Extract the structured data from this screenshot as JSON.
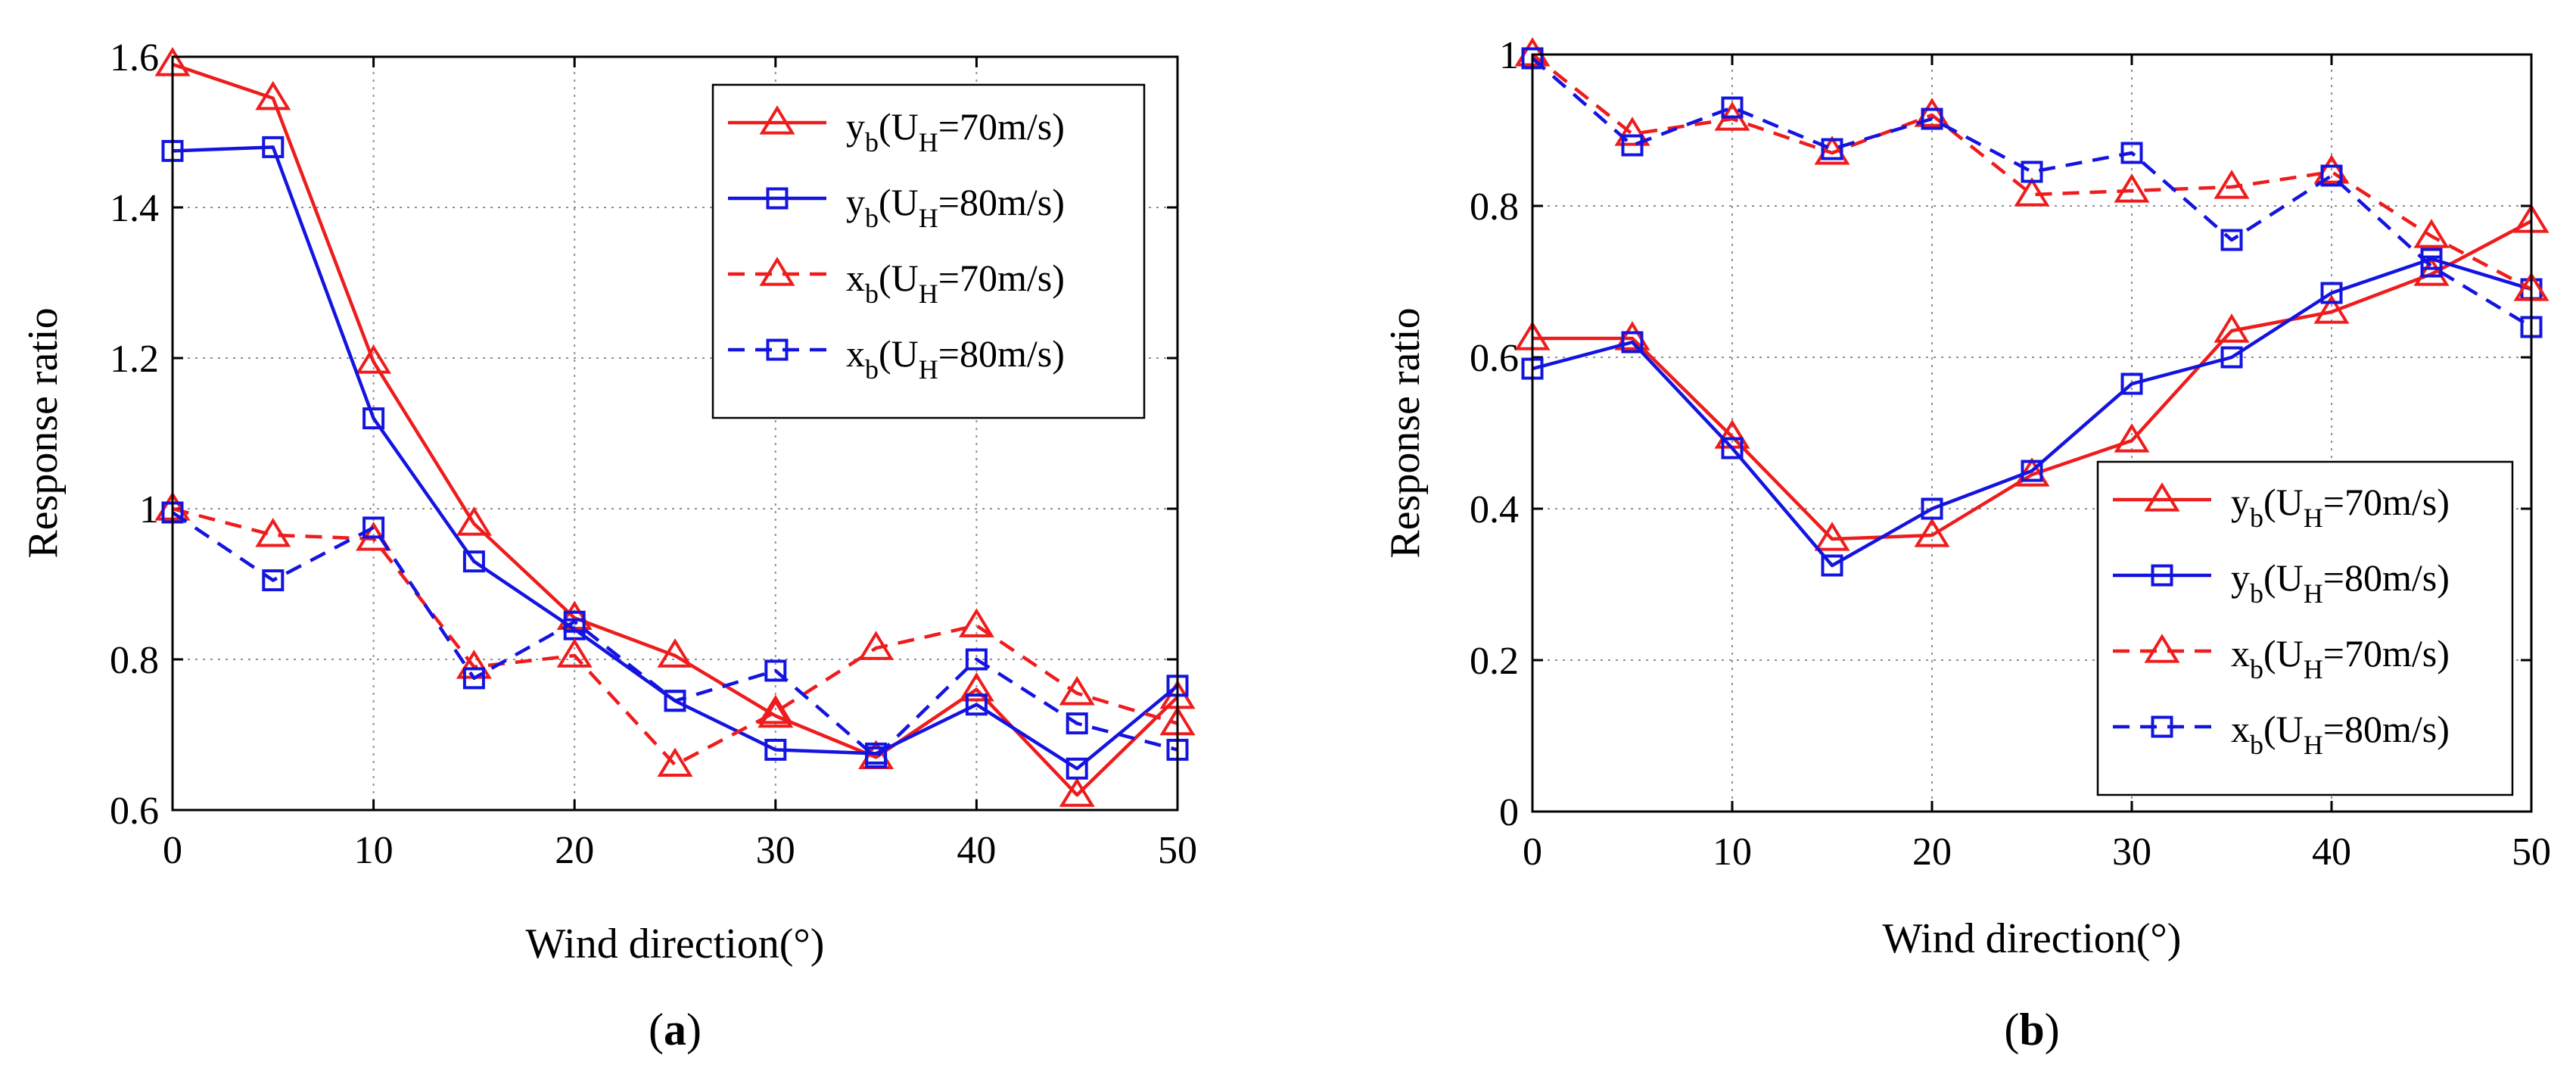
{
  "figure": {
    "panel_labels": [
      {
        "open": "(",
        "letter": "a",
        "close": ")"
      },
      {
        "open": "(",
        "letter": "b",
        "close": ")"
      }
    ]
  },
  "colors": {
    "red": "#ee1c1c",
    "blue": "#1414e0",
    "grid": "#909090",
    "axis": "#000000"
  },
  "chart_data": [
    {
      "type": "line",
      "panel": "a",
      "xlabel": "Wind direction(°)",
      "ylabel": "Response ratio",
      "xlim": [
        0,
        50
      ],
      "ylim": [
        0.6,
        1.6
      ],
      "xticks": [
        0,
        10,
        20,
        30,
        40,
        50
      ],
      "xtick_labels": [
        "0",
        "10",
        "20",
        "30",
        "40",
        "50"
      ],
      "yticks": [
        0.6,
        0.8,
        1.0,
        1.2,
        1.4,
        1.6
      ],
      "ytick_labels": [
        "0.6",
        "0.8",
        "1",
        "1.2",
        "1.4",
        "1.6"
      ],
      "grid": true,
      "legend_position": "top-right",
      "x": [
        0,
        5,
        10,
        15,
        20,
        25,
        30,
        35,
        40,
        45,
        50
      ],
      "series": [
        {
          "name": "yb70",
          "label_main": "y",
          "label_sub": "b",
          "label_mid": "(U",
          "label_sub2": "H",
          "label_end": "=70m/s)",
          "color": "red",
          "dashed": false,
          "marker": "triangle",
          "values": [
            1.59,
            1.545,
            1.195,
            0.98,
            0.855,
            0.805,
            0.725,
            0.67,
            0.76,
            0.62,
            0.75
          ]
        },
        {
          "name": "yb80",
          "label_main": "y",
          "label_sub": "b",
          "label_mid": "(U",
          "label_sub2": "H",
          "label_end": "=80m/s)",
          "color": "blue",
          "dashed": false,
          "marker": "square",
          "values": [
            1.475,
            1.48,
            1.12,
            0.93,
            0.84,
            0.745,
            0.68,
            0.675,
            0.74,
            0.655,
            0.765
          ]
        },
        {
          "name": "xb70",
          "label_main": "x",
          "label_sub": "b",
          "label_mid": "(U",
          "label_sub2": "H",
          "label_end": "=70m/s)",
          "color": "red",
          "dashed": true,
          "marker": "triangle",
          "values": [
            1.0,
            0.965,
            0.96,
            0.79,
            0.805,
            0.66,
            0.73,
            0.815,
            0.845,
            0.755,
            0.715
          ]
        },
        {
          "name": "xb80",
          "label_main": "x",
          "label_sub": "b",
          "label_mid": "(U",
          "label_sub2": "H",
          "label_end": "=80m/s)",
          "color": "blue",
          "dashed": true,
          "marker": "square",
          "values": [
            0.995,
            0.905,
            0.975,
            0.775,
            0.85,
            0.745,
            0.785,
            0.67,
            0.8,
            0.715,
            0.68
          ]
        }
      ]
    },
    {
      "type": "line",
      "panel": "b",
      "xlabel": "Wind direction(°)",
      "ylabel": "Response ratio",
      "xlim": [
        0,
        50
      ],
      "ylim": [
        0,
        1
      ],
      "xticks": [
        0,
        10,
        20,
        30,
        40,
        50
      ],
      "xtick_labels": [
        "0",
        "10",
        "20",
        "30",
        "40",
        "50"
      ],
      "yticks": [
        0,
        0.2,
        0.4,
        0.6,
        0.8,
        1.0
      ],
      "ytick_labels": [
        "0",
        "0.2",
        "0.4",
        "0.6",
        "0.8",
        "1"
      ],
      "grid": true,
      "legend_position": "bottom-right",
      "x": [
        0,
        5,
        10,
        15,
        20,
        25,
        30,
        35,
        40,
        45,
        50
      ],
      "series": [
        {
          "name": "yb70",
          "label_main": "y",
          "label_sub": "b",
          "label_mid": "(U",
          "label_sub2": "H",
          "label_end": "=70m/s)",
          "color": "red",
          "dashed": false,
          "marker": "triangle",
          "values": [
            0.625,
            0.625,
            0.495,
            0.36,
            0.365,
            0.445,
            0.49,
            0.635,
            0.66,
            0.71,
            0.78
          ]
        },
        {
          "name": "yb80",
          "label_main": "y",
          "label_sub": "b",
          "label_mid": "(U",
          "label_sub2": "H",
          "label_end": "=80m/s)",
          "color": "blue",
          "dashed": false,
          "marker": "square",
          "values": [
            0.585,
            0.62,
            0.48,
            0.325,
            0.4,
            0.45,
            0.565,
            0.6,
            0.685,
            0.73,
            0.69
          ]
        },
        {
          "name": "xb70",
          "label_main": "x",
          "label_sub": "b",
          "label_mid": "(U",
          "label_sub2": "H",
          "label_end": "=70m/s)",
          "color": "red",
          "dashed": true,
          "marker": "triangle",
          "values": [
            1.0,
            0.895,
            0.915,
            0.87,
            0.92,
            0.815,
            0.82,
            0.825,
            0.845,
            0.76,
            0.69
          ]
        },
        {
          "name": "xb80",
          "label_main": "x",
          "label_sub": "b",
          "label_mid": "(U",
          "label_sub2": "H",
          "label_end": "=80m/s)",
          "color": "blue",
          "dashed": true,
          "marker": "square",
          "values": [
            0.995,
            0.88,
            0.93,
            0.875,
            0.915,
            0.845,
            0.87,
            0.755,
            0.84,
            0.72,
            0.64
          ]
        }
      ]
    }
  ]
}
